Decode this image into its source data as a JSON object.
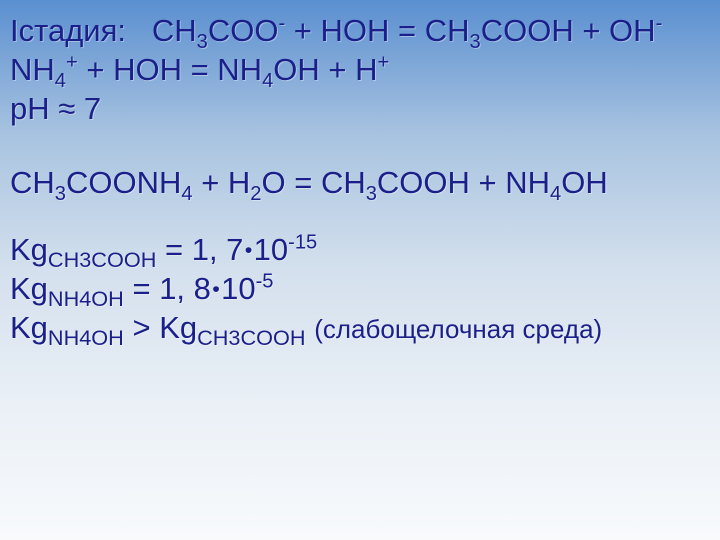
{
  "colors": {
    "text": "#1a1f8a",
    "gradient_top": "#5a8fd0",
    "gradient_bottom": "#f8fafc"
  },
  "typography": {
    "font_family": "Arial, sans-serif",
    "font_size_pt": 23,
    "font_weight": 500
  },
  "lines": {
    "stage_label": "Iстадия:",
    "l1_a": "CH",
    "l1_b": "COO",
    "l1_c": " + HOH = CH",
    "l1_d": "COOH + OH",
    "l2_a": "NH",
    "l2_b": " + HOH = NH",
    "l2_c": "OH + H",
    "ph": "pH ≈ 7",
    "l4_a": "CH",
    "l4_b": "COONH",
    "l4_c": " + H",
    "l4_d": "O = CH",
    "l4_e": "COOH + NH",
    "l4_f": "OH",
    "kg": "Kg",
    "kg_ch3cooh": "CH3COOH",
    "kg_nh4oh": "NH4OH",
    "eq": " = ",
    "gt": " > ",
    "val1_a": "1, 7",
    "val1_b": "10",
    "val2_a": "1, 8",
    "val2_b": "10",
    "exp_neg15": "-15",
    "exp_neg5": "-5",
    "paren": "(слабощелочная среда)",
    "three": "3",
    "four": "4",
    "two": "2",
    "plus": "+",
    "minus": "-",
    "dot": "•"
  }
}
